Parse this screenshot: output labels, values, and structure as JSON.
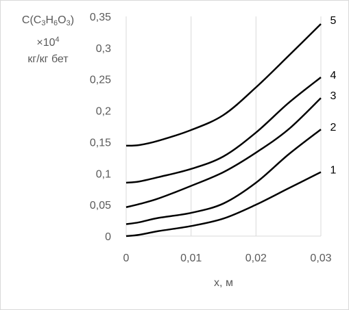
{
  "chart_data": {
    "type": "line",
    "ylabel_parts": {
      "c": "C(C",
      "s1": "3",
      "h": "H",
      "s2": "6",
      "o": "O",
      "s3": "3",
      "close": ")",
      "times": "×10",
      "exp": "4",
      "unit": "кг/кг бет"
    },
    "xlabel": "x, м",
    "xlim": [
      0,
      0.03
    ],
    "ylim": [
      0,
      0.35
    ],
    "x_ticks": [
      {
        "value": 0,
        "label": "0"
      },
      {
        "value": 0.01,
        "label": "0,01"
      },
      {
        "value": 0.02,
        "label": "0,02"
      },
      {
        "value": 0.03,
        "label": "0,03"
      }
    ],
    "y_ticks": [
      {
        "value": 0,
        "label": "0"
      },
      {
        "value": 0.05,
        "label": "0,05"
      },
      {
        "value": 0.1,
        "label": "0,1"
      },
      {
        "value": 0.15,
        "label": "0,15"
      },
      {
        "value": 0.2,
        "label": "0,2"
      },
      {
        "value": 0.25,
        "label": "0,25"
      },
      {
        "value": 0.3,
        "label": "0,3"
      },
      {
        "value": 0.35,
        "label": "0,35"
      }
    ],
    "grid": "vertical",
    "line_color": "#000000",
    "grid_color": "#d9d9d9",
    "series": [
      {
        "name": "1",
        "x": [
          0,
          0.002,
          0.005,
          0.01,
          0.015,
          0.02,
          0.025,
          0.03
        ],
        "y": [
          0,
          0.002,
          0.008,
          0.016,
          0.028,
          0.05,
          0.076,
          0.102
        ]
      },
      {
        "name": "2",
        "x": [
          0,
          0.002,
          0.005,
          0.01,
          0.015,
          0.02,
          0.025,
          0.03
        ],
        "y": [
          0.019,
          0.022,
          0.029,
          0.037,
          0.052,
          0.085,
          0.13,
          0.17
        ]
      },
      {
        "name": "3",
        "x": [
          0,
          0.002,
          0.005,
          0.01,
          0.015,
          0.02,
          0.025,
          0.03
        ],
        "y": [
          0.046,
          0.051,
          0.06,
          0.08,
          0.102,
          0.133,
          0.17,
          0.22
        ]
      },
      {
        "name": "4",
        "x": [
          0,
          0.002,
          0.005,
          0.01,
          0.015,
          0.02,
          0.025,
          0.03
        ],
        "y": [
          0.085,
          0.087,
          0.094,
          0.107,
          0.127,
          0.165,
          0.212,
          0.253
        ]
      },
      {
        "name": "5",
        "x": [
          0,
          0.002,
          0.005,
          0.01,
          0.015,
          0.02,
          0.025,
          0.03
        ],
        "y": [
          0.144,
          0.145,
          0.152,
          0.169,
          0.193,
          0.237,
          0.287,
          0.338
        ]
      }
    ]
  }
}
